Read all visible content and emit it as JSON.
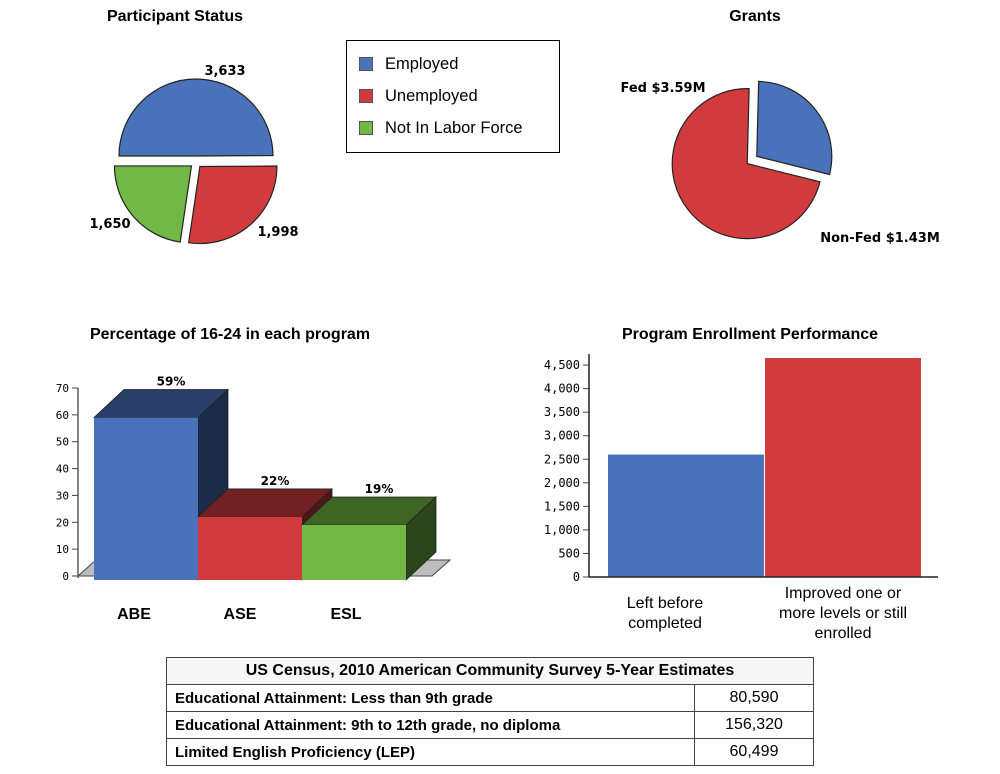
{
  "chart_data": [
    {
      "type": "pie",
      "title": "Participant Status",
      "categories": [
        "Employed",
        "Unemployed",
        "Not In Labor Force"
      ],
      "values": [
        3633,
        1998,
        1650
      ],
      "labels": [
        "3,633",
        "1,998",
        "1,650"
      ],
      "colors": [
        "#4a72bb",
        "#d13b3e",
        "#72b844"
      ],
      "exploded": true
    },
    {
      "type": "pie",
      "title": "Grants",
      "categories": [
        "Fed",
        "Non-Fed"
      ],
      "values": [
        3.59,
        1.43
      ],
      "labels": [
        "Fed $3.59M",
        "Non-Fed $1.43M"
      ],
      "colors": [
        "#d13b3e",
        "#4a72bb"
      ],
      "exploded": true
    },
    {
      "type": "bar",
      "title": "Percentage of 16-24 in each program",
      "categories": [
        "ABE",
        "ASE",
        "ESL"
      ],
      "values": [
        59,
        22,
        19
      ],
      "data_labels": [
        "59%",
        "22%",
        "19%"
      ],
      "ylim": [
        0,
        70
      ],
      "yticks": [
        "0",
        "10",
        "20",
        "30",
        "40",
        "50",
        "60",
        "70"
      ],
      "colors": [
        "#4a72bb",
        "#d13b3e",
        "#72b844"
      ],
      "style": "3d"
    },
    {
      "type": "bar",
      "title": "Program Enrollment Performance",
      "categories": [
        "Left before completed",
        "Improved one or more levels or still enrolled"
      ],
      "values": [
        2600,
        4650
      ],
      "ylim": [
        0,
        4650
      ],
      "yticks": [
        "0",
        "500",
        "1,000",
        "1,500",
        "2,000",
        "2,500",
        "3,000",
        "3,500",
        "4,000",
        "4,500"
      ],
      "colors": [
        "#4a72bb",
        "#d13b3e"
      ]
    }
  ],
  "legend": {
    "items": [
      {
        "label": "Employed",
        "color": "#4a72bb"
      },
      {
        "label": "Unemployed",
        "color": "#d13b3e"
      },
      {
        "label": "Not In Labor Force",
        "color": "#72b844"
      }
    ]
  },
  "census_table": {
    "title": "US Census, 2010 American Community Survey 5-Year Estimates",
    "rows": [
      {
        "label": "Educational Attainment: Less than 9th grade",
        "value": "80,590"
      },
      {
        "label": "Educational Attainment: 9th to 12th grade, no diploma",
        "value": "156,320"
      },
      {
        "label": "Limited English Proficiency (LEP)",
        "value": "60,499"
      }
    ]
  }
}
